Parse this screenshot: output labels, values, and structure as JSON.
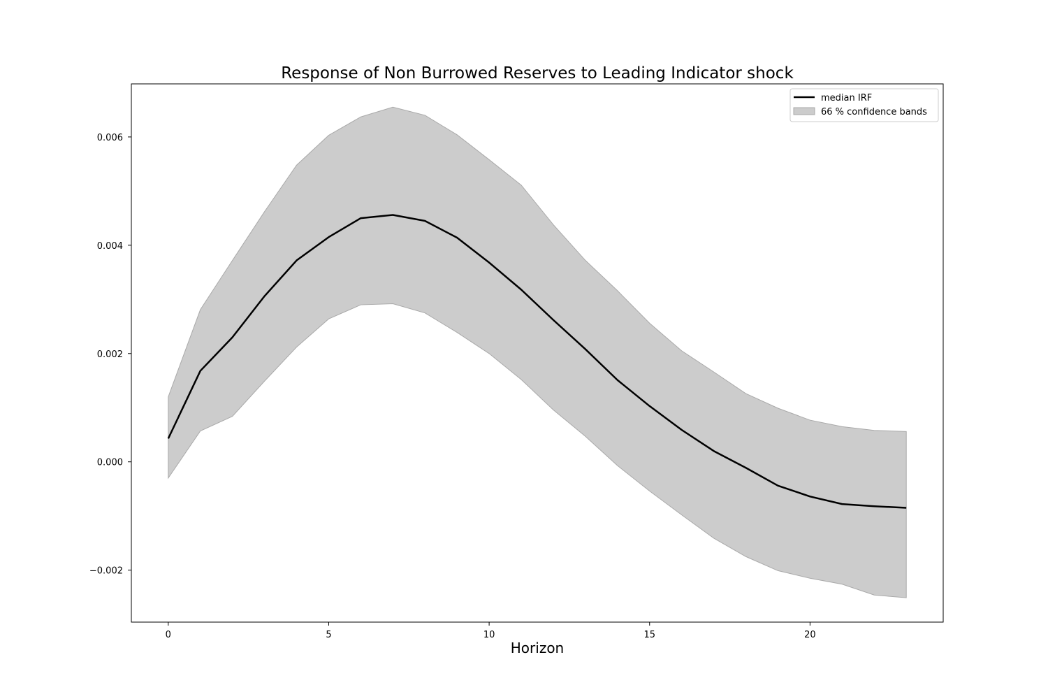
{
  "chart_data": {
    "type": "line",
    "title": "Response of Non Burrowed Reserves to Leading Indicator shock",
    "xlabel": "Horizon",
    "ylabel": "",
    "xlim": [
      -1.15,
      24.15
    ],
    "ylim": [
      -0.00296,
      0.00698
    ],
    "xticks": [
      0,
      5,
      10,
      15,
      20
    ],
    "xtick_labels": [
      "0",
      "5",
      "10",
      "15",
      "20"
    ],
    "yticks": [
      -0.002,
      0.0,
      0.002,
      0.004,
      0.006
    ],
    "ytick_labels": [
      "−0.002",
      "0.000",
      "0.002",
      "0.004",
      "0.006"
    ],
    "grid": false,
    "legend_position": "top-right",
    "x": [
      0,
      1,
      2,
      3,
      4,
      5,
      6,
      7,
      8,
      9,
      10,
      11,
      12,
      13,
      14,
      15,
      16,
      17,
      18,
      19,
      20,
      21,
      22,
      23
    ],
    "series": [
      {
        "name": "median IRF",
        "color": "#000000",
        "values": [
          0.00043,
          0.00168,
          0.0023,
          0.00306,
          0.00372,
          0.00415,
          0.0045,
          0.00456,
          0.00445,
          0.00414,
          0.00368,
          0.00318,
          0.00262,
          0.00208,
          0.00151,
          0.00103,
          0.00059,
          0.0002,
          -0.00011,
          -0.00044,
          -0.00064,
          -0.00078,
          -0.00082,
          -0.00085
        ]
      }
    ],
    "band": {
      "name": "66 % confidence bands",
      "color": "#cccccc",
      "edge_color": "#a9a9a9",
      "upper": [
        0.0012,
        0.00281,
        0.00372,
        0.00462,
        0.00548,
        0.00603,
        0.00637,
        0.00655,
        0.0064,
        0.00604,
        0.00558,
        0.00511,
        0.00438,
        0.00372,
        0.00316,
        0.00256,
        0.00205,
        0.00166,
        0.00126,
        0.00099,
        0.00077,
        0.00065,
        0.00058,
        0.00056
      ],
      "lower": [
        -0.0003,
        0.00057,
        0.00084,
        0.00149,
        0.00212,
        0.00264,
        0.0029,
        0.00292,
        0.00275,
        0.00239,
        0.002,
        0.00152,
        0.00096,
        0.00047,
        -7e-05,
        -0.00054,
        -0.00098,
        -0.00141,
        -0.00175,
        -0.00201,
        -0.00215,
        -0.00226,
        -0.00246,
        -0.00251
      ]
    }
  }
}
